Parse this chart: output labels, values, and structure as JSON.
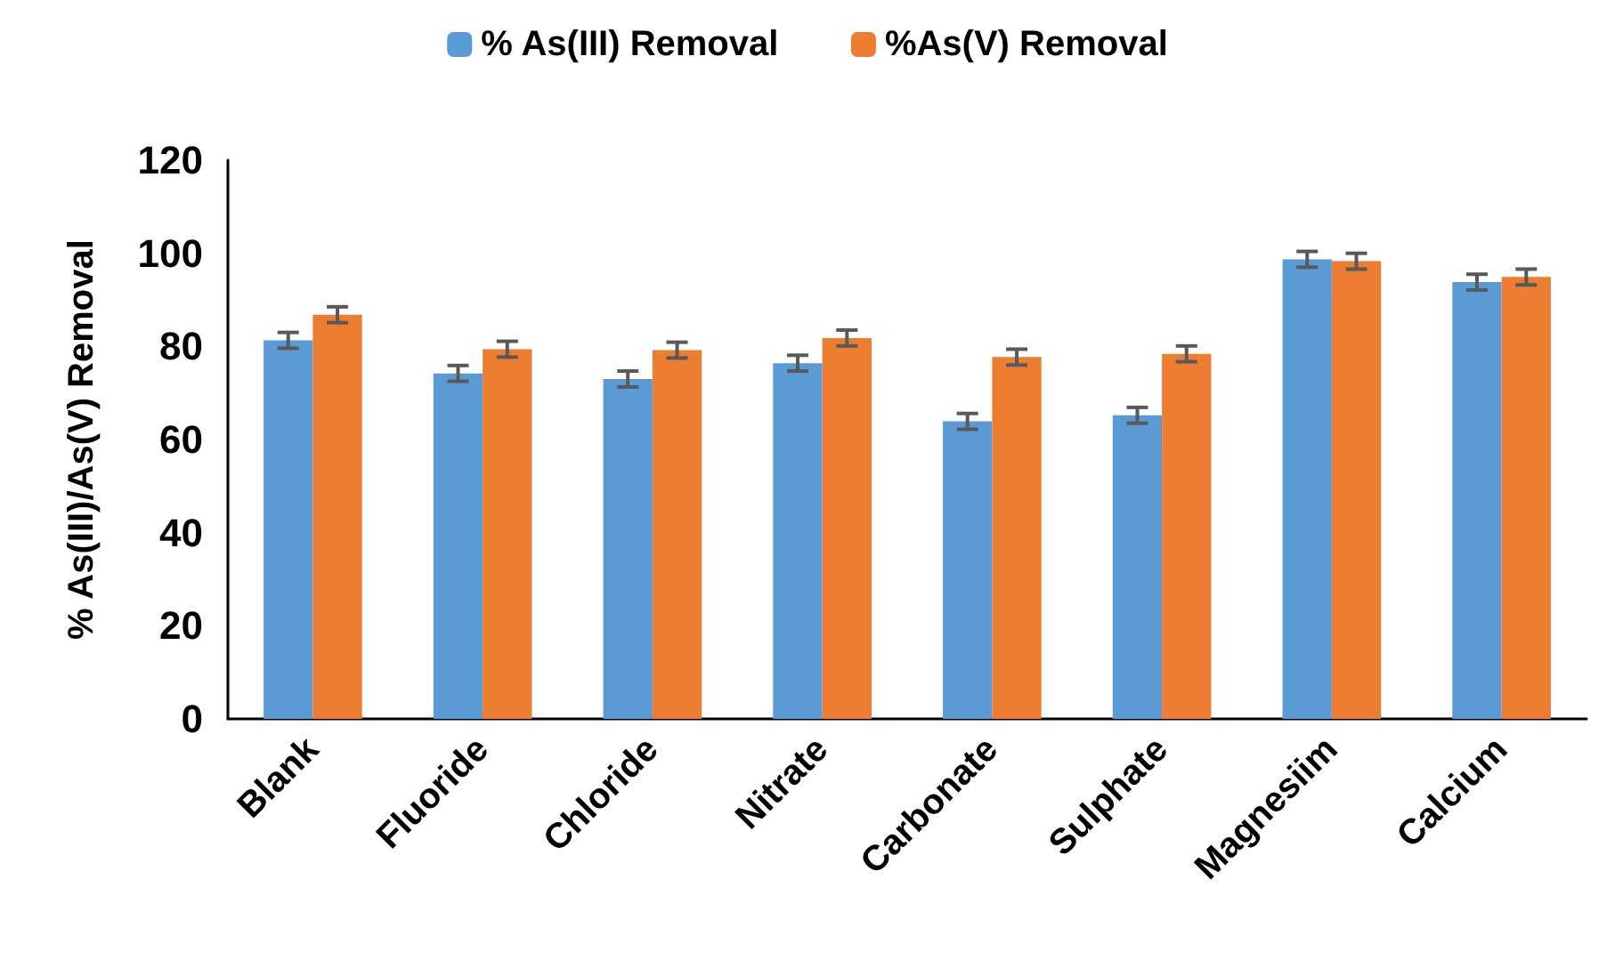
{
  "chart_data": {
    "type": "bar",
    "ylabel": "% As(III)/As(V) Removal",
    "categories": [
      "Blank",
      "Fluoride",
      "Chloride",
      "Nitrate",
      "Carbonate",
      "Sulphate",
      "Magnesiim",
      "Calcium"
    ],
    "series": [
      {
        "name": "% As(III) Removal",
        "color": "#5b9bd5",
        "values": [
          81.3,
          74.2,
          73,
          76.4,
          63.9,
          65.2,
          98.7,
          93.8
        ],
        "errors": [
          1.7,
          1.7,
          1.7,
          1.7,
          1.7,
          1.7,
          1.7,
          1.7
        ]
      },
      {
        "name": "%As(V) Removal",
        "color": "#ed7d31",
        "values": [
          86.8,
          79.4,
          79.2,
          81.8,
          77.7,
          78.4,
          98.3,
          94.9
        ],
        "errors": [
          1.7,
          1.7,
          1.7,
          1.7,
          1.7,
          1.7,
          1.7,
          1.7
        ]
      }
    ],
    "ylim": [
      0,
      120
    ],
    "yticks": [
      0,
      20,
      40,
      60,
      80,
      100,
      120
    ],
    "grid": false,
    "legend": "top"
  }
}
